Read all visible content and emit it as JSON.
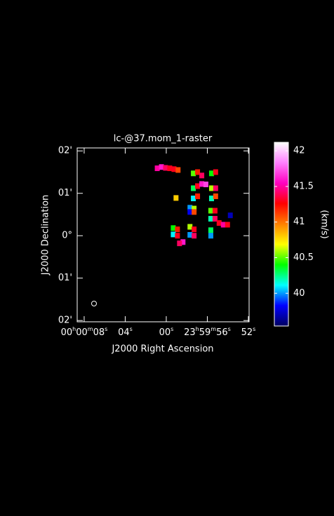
{
  "chart_data": {
    "type": "image",
    "title": "lc-@37.mom_1-raster",
    "x_label": "J2000 Right Ascension",
    "y_label": "J2000 Declination",
    "colorbar_label": "(km/s)",
    "xlim": [
      8.68,
      -8.07
    ],
    "xticks": [
      {
        "value": 8,
        "label": "00h00m08s"
      },
      {
        "value": 4,
        "label": "04s"
      },
      {
        "value": 0,
        "label": "00s"
      },
      {
        "value": -4,
        "label": "23h59m56s"
      },
      {
        "value": -8,
        "label": "52s"
      }
    ],
    "ylim": [
      -2.03,
      2.07
    ],
    "yticks": [
      {
        "value": 2,
        "label": "02'"
      },
      {
        "value": 1,
        "label": "01'"
      },
      {
        "value": 0,
        "label": "0°"
      },
      {
        "value": -1,
        "label": "01'"
      },
      {
        "value": -2,
        "label": "02'"
      }
    ],
    "clim": [
      39.54,
      42.12
    ],
    "cticks": [
      40,
      40.5,
      41,
      41.5,
      42
    ],
    "colormap": [
      "#000060",
      "#0000ff",
      "#00ffff",
      "#00ff00",
      "#ffff00",
      "#ff8000",
      "#ff0000",
      "#ff00c0",
      "#ff80ff",
      "#ffffff"
    ],
    "x": [
      0.88,
      0.47,
      0.07,
      -0.34,
      -0.75,
      -1.15,
      -2.64,
      -3.05,
      -3.46,
      -2.64,
      -3.05,
      -3.46,
      -2.64,
      -3.05,
      -4.41,
      -4.81,
      -4.41,
      -4.81,
      -4.41,
      -4.81,
      -3.86,
      -0.95,
      -2.31,
      -2.71,
      -2.31,
      -2.71,
      -4.34,
      -4.75,
      -4.34,
      -4.75,
      -5.15,
      -5.56,
      -5.97,
      -0.68,
      -1.09,
      -0.68,
      -1.09,
      -2.31,
      -2.71,
      -2.31,
      -2.71,
      -4.34,
      -4.34,
      -1.63,
      -1.29,
      -6.24
    ],
    "y": [
      1.59,
      1.62,
      1.6,
      1.59,
      1.57,
      1.55,
      1.47,
      1.5,
      1.42,
      1.12,
      1.17,
      1.22,
      0.88,
      0.93,
      1.47,
      1.5,
      1.12,
      1.12,
      0.88,
      0.93,
      1.21,
      0.89,
      0.66,
      0.64,
      0.56,
      0.56,
      0.59,
      0.59,
      0.4,
      0.4,
      0.3,
      0.26,
      0.26,
      0.18,
      0.15,
      0.03,
      0.0,
      0.21,
      0.15,
      0.02,
      0.0,
      0.13,
      0.0,
      -0.15,
      -0.18,
      0.48
    ],
    "values": [
      41.5,
      41.6,
      41.4,
      41.3,
      41.3,
      41.1,
      40.5,
      41.2,
      41.4,
      40.3,
      41.3,
      41.6,
      40.1,
      41.2,
      40.4,
      41.3,
      40.6,
      41.4,
      40.2,
      41.1,
      41.7,
      40.8,
      40.0,
      40.6,
      39.8,
      41.1,
      40.5,
      41.3,
      40.2,
      41.4,
      41.3,
      41.5,
      41.3,
      40.4,
      41.2,
      40.1,
      41.3,
      40.6,
      41.3,
      40.0,
      41.4,
      40.3,
      40.0,
      41.6,
      41.4,
      39.7
    ]
  }
}
